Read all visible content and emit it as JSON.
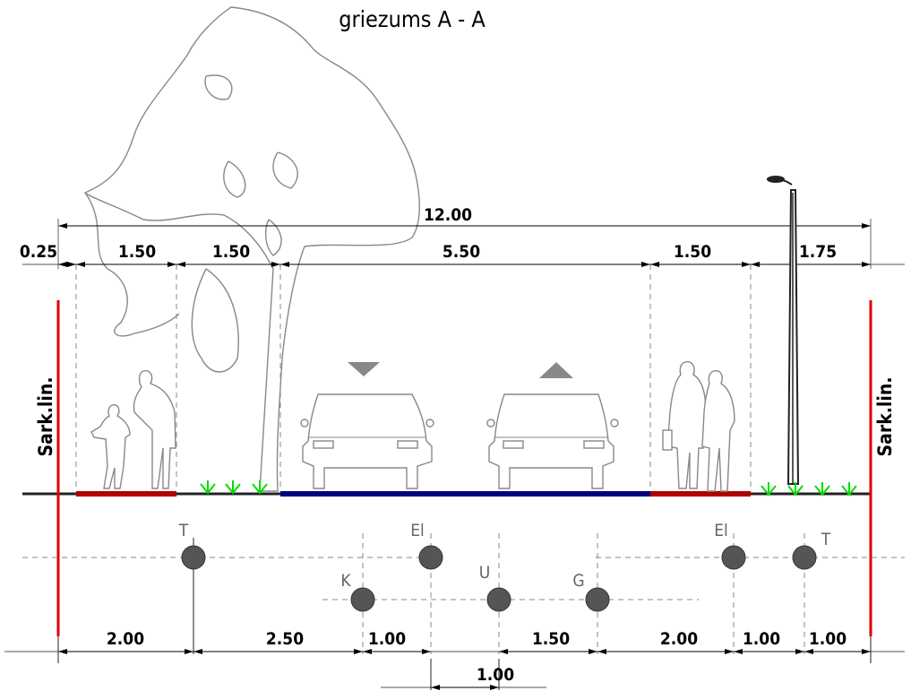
{
  "title": "griezums A - A",
  "side_labels": {
    "left": "Sark.lin.",
    "right": "Sark.lin."
  },
  "dimensions": {
    "overall": "12.00",
    "top_segments": [
      "0.25",
      "1.50",
      "1.50",
      "5.50",
      "1.50",
      "1.75"
    ],
    "bottom_segments": [
      "2.00",
      "2.50",
      "1.00",
      "1.50",
      "2.00",
      "1.00",
      "1.00"
    ],
    "bottom_extra": "1.00"
  },
  "utilities": [
    {
      "code": "T"
    },
    {
      "code": "El"
    },
    {
      "code": "K"
    },
    {
      "code": "U"
    },
    {
      "code": "G"
    },
    {
      "code": "El"
    },
    {
      "code": "T"
    }
  ],
  "colors": {
    "red_line": "#dd0000",
    "sidewalk": "#b00000",
    "road": "#000080",
    "grass": "#00dd00",
    "utility": "#555555"
  }
}
